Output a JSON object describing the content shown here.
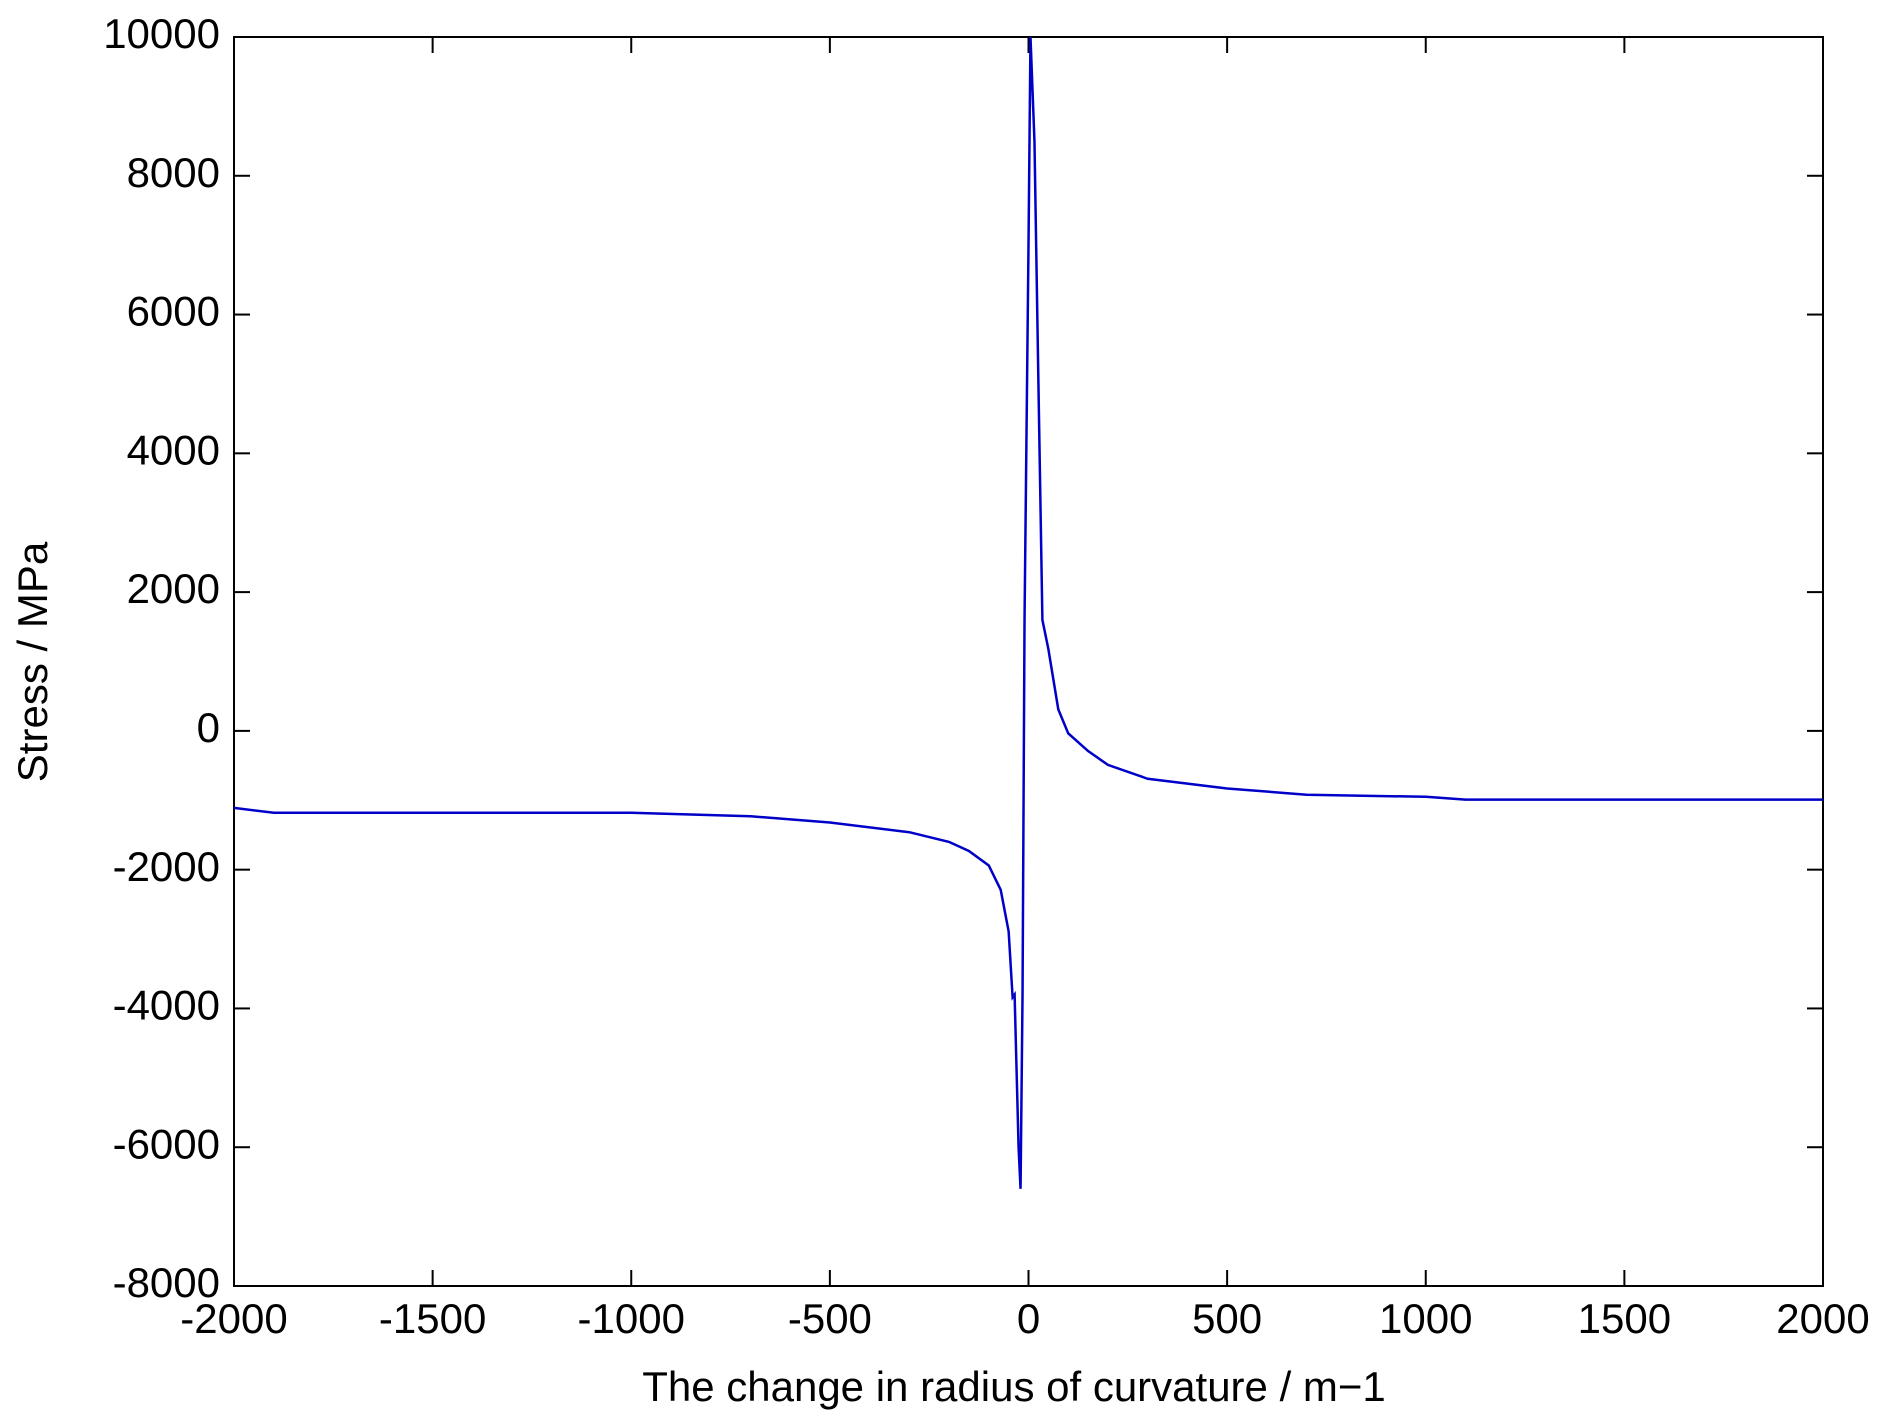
{
  "chart_data": {
    "type": "line",
    "x_label": "The change in radius of curvature / m−1",
    "y_label": "Stress / MPa",
    "xlim": [
      -2000,
      2000
    ],
    "ylim": [
      -8000,
      10000
    ],
    "xticks": [
      -2000,
      -1500,
      -1000,
      -500,
      0,
      500,
      1000,
      1500,
      2000
    ],
    "yticks": [
      -8000,
      -6000,
      -4000,
      -2000,
      0,
      2000,
      4000,
      6000,
      8000,
      10000
    ],
    "grid": false,
    "series": [
      {
        "color": "#0000c8",
        "x": [
          -2000,
          -1900,
          -1500,
          -1000,
          -700,
          -500,
          -300,
          -200,
          -150,
          -100,
          -70,
          -50,
          -40,
          -35,
          -25,
          -20,
          -15,
          -10,
          0,
          5,
          15,
          25,
          35,
          50,
          75,
          100,
          150,
          200,
          300,
          500,
          700,
          1000,
          1100,
          2000
        ],
        "values": [
          -1110,
          -1180,
          -1180,
          -1180,
          -1230,
          -1320,
          -1460,
          -1600,
          -1730,
          -1940,
          -2290,
          -2890,
          -3840,
          -3800,
          -6000,
          -6600,
          -3800,
          1600,
          7000,
          10000,
          8500,
          5000,
          1600,
          1180,
          310,
          -35,
          -290,
          -490,
          -690,
          -830,
          -920,
          -950,
          -990,
          -990
        ]
      }
    ]
  }
}
